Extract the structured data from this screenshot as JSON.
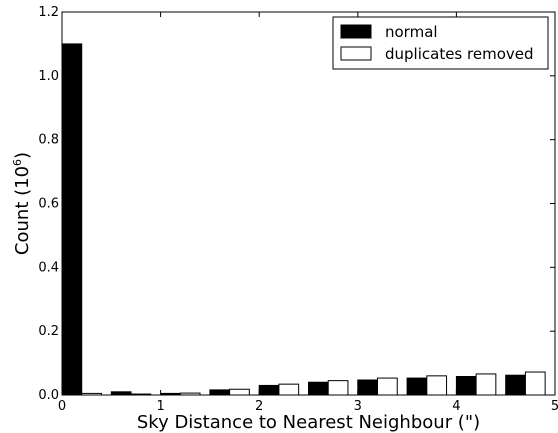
{
  "chart_data": {
    "type": "bar",
    "xlabel": "Sky Distance to Nearest Neighbour (\")",
    "ylabel_prefix": "Count (",
    "ylabel_power_base": "10",
    "ylabel_power_exp": "6",
    "ylabel_suffix": ")",
    "xlim": [
      0,
      5
    ],
    "ylim": [
      0,
      1.2
    ],
    "xticks": [
      {
        "value": 0,
        "label": "0"
      },
      {
        "value": 1,
        "label": "1"
      },
      {
        "value": 2,
        "label": "2"
      },
      {
        "value": 3,
        "label": "3"
      },
      {
        "value": 4,
        "label": "4"
      },
      {
        "value": 5,
        "label": "5"
      }
    ],
    "yticks": [
      {
        "value": 0,
        "label": "0.0"
      },
      {
        "value": 0.2,
        "label": "0.2"
      },
      {
        "value": 0.4,
        "label": "0.4"
      },
      {
        "value": 0.6,
        "label": "0.6"
      },
      {
        "value": 0.8,
        "label": "0.8"
      },
      {
        "value": 1.0,
        "label": "1.0"
      },
      {
        "value": 1.2,
        "label": "1.2"
      }
    ],
    "bin_width": 0.4,
    "bin_starts": [
      0,
      0.5,
      1,
      1.5,
      2,
      2.5,
      3,
      3.5,
      4,
      4.5
    ],
    "series": [
      {
        "name": "normal",
        "color": "#000000",
        "values": [
          1.1,
          0.01,
          0.005,
          0.016,
          0.03,
          0.04,
          0.047,
          0.053,
          0.058,
          0.062
        ]
      },
      {
        "name": "duplicates removed",
        "color": "#ffffff",
        "values": [
          0.005,
          0.003,
          0.006,
          0.018,
          0.034,
          0.045,
          0.053,
          0.06,
          0.066,
          0.072
        ]
      }
    ],
    "legend_position": "top-right",
    "grid": false
  }
}
